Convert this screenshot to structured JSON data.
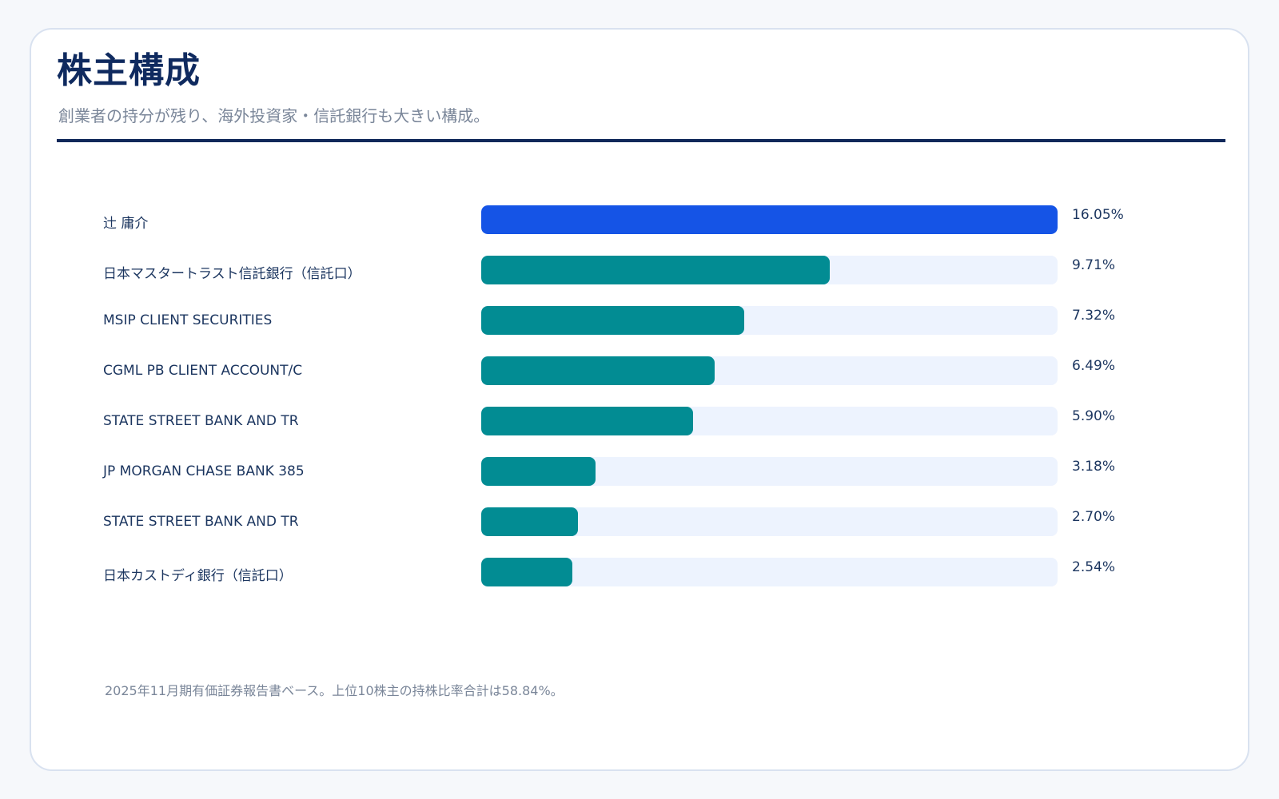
{
  "header": {
    "title": "株主構成",
    "subtitle": "創業者の持分が残り、海外投資家・信託銀行も大きい構成。"
  },
  "colors": {
    "highlight": "#1554e6",
    "bar": "#028c93",
    "track": "#edf3fe",
    "title": "#0f2a5f",
    "text": "#1b355f",
    "muted": "#7a8699"
  },
  "chart_data": {
    "type": "bar",
    "orientation": "horizontal",
    "title": "株主構成",
    "xlim": [
      0,
      16.05
    ],
    "grid": false,
    "categories": [
      "辻 庸介",
      "日本マスタートラスト信託銀行（信託口）",
      "MSIP CLIENT SECURITIES",
      "CGML PB CLIENT ACCOUNT/C",
      "STATE STREET BANK AND TR",
      "JP MORGAN CHASE BANK 385",
      "STATE STREET BANK AND TR",
      "日本カストディ銀行（信託口）"
    ],
    "values": [
      16.05,
      9.71,
      7.32,
      6.49,
      5.9,
      3.18,
      2.7,
      2.54
    ],
    "value_labels": [
      "16.05%",
      "9.71%",
      "7.32%",
      "6.49%",
      "5.90%",
      "3.18%",
      "2.70%",
      "2.54%"
    ],
    "highlighted_index": 0
  },
  "footnote": "2025年11月期有価証券報告書ベース。上位10株主の持株比率合計は58.84%。"
}
